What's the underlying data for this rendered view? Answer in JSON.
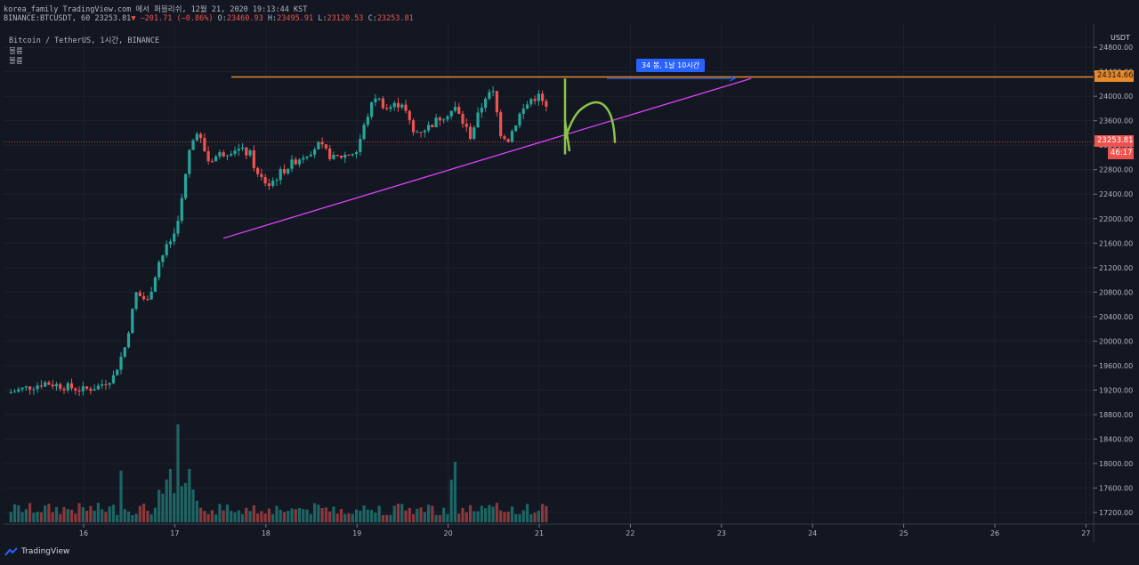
{
  "header": {
    "line1": "korea_family TradingView.com 에서 퍼블리쉬, 12월 21, 2020 19:13:44 KST",
    "symbol": "BINANCE:BTCUSDT, 60",
    "last": "23253.81",
    "change": "−201.71 (−0.86%)",
    "o_label": "O:",
    "o": "23460.93",
    "h_label": "H:",
    "h": "23495.91",
    "l_label": "L:",
    "l": "23120.53",
    "c_label": "C:",
    "c": "23253.81"
  },
  "legend": {
    "title": "Bitcoin / TetherUS, 1시간, BINANCE",
    "line2": "볼륨",
    "line3": "볼륨"
  },
  "axis": {
    "currency": "USDT",
    "resistance_price": "24314.66",
    "last_price": "23253.81",
    "countdown": "46:17"
  },
  "measure_label": "34 봉, 1날 10시간",
  "brand": "TradingView",
  "colors": {
    "up": "#26a69a",
    "down": "#ef5350",
    "resistance": "#e8892a",
    "trendline": "#e040fb",
    "arc": "#8bc34a",
    "measure": "#2962ff"
  },
  "chart_data": {
    "type": "candlestick",
    "x_ticks": [
      "16",
      "17",
      "18",
      "19",
      "20",
      "21",
      "22",
      "23",
      "24",
      "25",
      "26",
      "27"
    ],
    "y_ticks": [
      17200,
      17600,
      18000,
      18400,
      18800,
      19200,
      19600,
      20000,
      20400,
      20800,
      21200,
      21600,
      22000,
      22400,
      22800,
      23200,
      23600,
      24000,
      24400,
      24800
    ],
    "ylim": [
      17100,
      25000
    ],
    "resistance": 24314.66,
    "last_price": 23253.81,
    "trendline": {
      "from": [
        "17 14:00",
        21680
      ],
      "to": [
        "23 08:00",
        24290
      ]
    },
    "close_path_by_day": [
      {
        "day": "16",
        "open": 19150,
        "close": 19310
      },
      {
        "day": "17",
        "open": 19420,
        "close": 21750
      },
      {
        "day": "18",
        "open": 21750,
        "close": 23050
      },
      {
        "day": "19",
        "open": 23020,
        "close": 22780
      },
      {
        "day": "20",
        "open": 22780,
        "close": 23600
      },
      {
        "day": "21",
        "open": 23580,
        "close": 23253.81
      }
    ]
  }
}
